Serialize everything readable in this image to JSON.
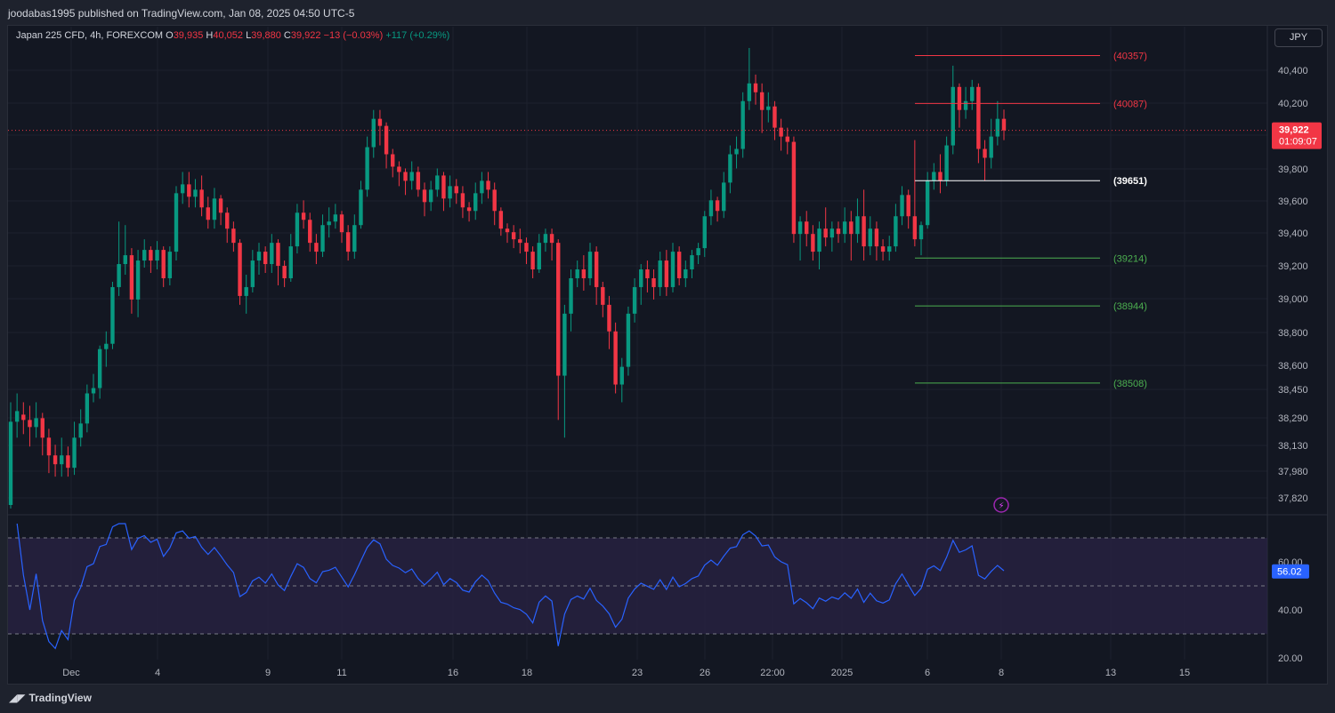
{
  "header": {
    "published_text": "joodabas1995 published on TradingView.com, Jan 08, 2025 04:50 UTC-5"
  },
  "legend": {
    "symbol": "Japan 225 CFD, 4h, FOREXCOM",
    "o_label": "O",
    "o_value": "39,935",
    "h_label": "H",
    "h_value": "40,052",
    "l_label": "L",
    "l_value": "39,880",
    "c_label": "C",
    "c_value": "39,922",
    "change": "−13 (−0.03%)",
    "change2": "+117 (+0.29%)"
  },
  "currency_button": "JPY",
  "price_axis": [
    "40,400",
    "40,200",
    "40,000",
    "39,800",
    "39,600",
    "39,400",
    "39,200",
    "39,000",
    "38,800",
    "38,600",
    "38,450",
    "38,290",
    "38,130",
    "37,980",
    "37,820"
  ],
  "current_price": {
    "value": "39,922",
    "countdown": "01:09:07"
  },
  "rsi_axis": [
    "60.00",
    "40.00",
    "20.00"
  ],
  "rsi_value": "56.02",
  "time_axis": [
    "Dec",
    "4",
    "9",
    "11",
    "16",
    "18",
    "23",
    "26",
    "22:00",
    "2025",
    "6",
    "8",
    "13",
    "15"
  ],
  "levels": [
    {
      "label": "(40357)",
      "value": 40357,
      "color": "#f23645"
    },
    {
      "label": "(40087)",
      "value": 40087,
      "color": "#f23645"
    },
    {
      "label": "(39651)",
      "value": 39651,
      "color": "#ffffff"
    },
    {
      "label": "(39214)",
      "value": 39214,
      "color": "#4caf50"
    },
    {
      "label": "(38944)",
      "value": 38944,
      "color": "#4caf50"
    },
    {
      "label": "(38508)",
      "value": 38508,
      "color": "#4caf50"
    }
  ],
  "colors": {
    "up": "#089981",
    "down": "#f23645",
    "rsi": "#2962ff",
    "background": "#131722"
  },
  "footer": {
    "brand": "TradingView"
  },
  "chart_data": {
    "type": "candlestick",
    "symbol": "Japan 225 CFD",
    "interval": "4h",
    "ylim": [
      37800,
      40450
    ],
    "candles": [
      [
        37820,
        38290,
        38400,
        37800
      ],
      [
        38290,
        38350,
        38450,
        38200
      ],
      [
        38330,
        38300,
        38400,
        38220
      ],
      [
        38300,
        38260,
        38380,
        38150
      ],
      [
        38260,
        38310,
        38400,
        38200
      ],
      [
        38310,
        38200,
        38340,
        38100
      ],
      [
        38200,
        38100,
        38250,
        38000
      ],
      [
        38100,
        38050,
        38160,
        37980
      ],
      [
        38050,
        38100,
        38200,
        37980
      ],
      [
        38100,
        38030,
        38150,
        37980
      ],
      [
        38030,
        38200,
        38290,
        37990
      ],
      [
        38200,
        38280,
        38360,
        38150
      ],
      [
        38280,
        38450,
        38500,
        38230
      ],
      [
        38450,
        38480,
        38560,
        38400
      ],
      [
        38480,
        38700,
        38720,
        38420
      ],
      [
        38700,
        38730,
        38800,
        38600
      ],
      [
        38730,
        39050,
        39080,
        38700
      ],
      [
        39050,
        39180,
        39420,
        39000
      ],
      [
        39180,
        39230,
        39400,
        39120
      ],
      [
        39230,
        38980,
        39270,
        38900
      ],
      [
        38980,
        39200,
        39260,
        38880
      ],
      [
        39200,
        39260,
        39320,
        39160
      ],
      [
        39260,
        39200,
        39280,
        39130
      ],
      [
        39200,
        39260,
        39310,
        39150
      ],
      [
        39260,
        39100,
        39280,
        39050
      ],
      [
        39100,
        39250,
        39280,
        39060
      ],
      [
        39250,
        39580,
        39620,
        39200
      ],
      [
        39580,
        39630,
        39700,
        39520
      ],
      [
        39630,
        39560,
        39700,
        39500
      ],
      [
        39560,
        39600,
        39660,
        39500
      ],
      [
        39600,
        39500,
        39680,
        39450
      ],
      [
        39500,
        39430,
        39560,
        39380
      ],
      [
        39430,
        39550,
        39610,
        39380
      ],
      [
        39550,
        39470,
        39570,
        39400
      ],
      [
        39470,
        39380,
        39500,
        39300
      ],
      [
        39380,
        39300,
        39420,
        39250
      ],
      [
        39300,
        39000,
        39320,
        38950
      ],
      [
        39000,
        39050,
        39120,
        38900
      ],
      [
        39050,
        39200,
        39260,
        39020
      ],
      [
        39200,
        39250,
        39300,
        39120
      ],
      [
        39250,
        39180,
        39280,
        39130
      ],
      [
        39180,
        39300,
        39350,
        39130
      ],
      [
        39300,
        39170,
        39320,
        39060
      ],
      [
        39170,
        39100,
        39200,
        39050
      ],
      [
        39100,
        39280,
        39350,
        39080
      ],
      [
        39280,
        39470,
        39520,
        39240
      ],
      [
        39470,
        39430,
        39540,
        39380
      ],
      [
        39430,
        39300,
        39470,
        39250
      ],
      [
        39300,
        39250,
        39350,
        39180
      ],
      [
        39250,
        39400,
        39460,
        39220
      ],
      [
        39400,
        39420,
        39500,
        39330
      ],
      [
        39420,
        39460,
        39520,
        39380
      ],
      [
        39460,
        39360,
        39480,
        39300
      ],
      [
        39360,
        39250,
        39400,
        39200
      ],
      [
        39250,
        39400,
        39460,
        39210
      ],
      [
        39400,
        39600,
        39650,
        39380
      ],
      [
        39600,
        39840,
        39900,
        39560
      ],
      [
        39840,
        40000,
        40050,
        39780
      ],
      [
        40000,
        39960,
        40050,
        39850
      ],
      [
        39960,
        39800,
        39980,
        39720
      ],
      [
        39800,
        39730,
        39830,
        39670
      ],
      [
        39730,
        39700,
        39760,
        39620
      ],
      [
        39700,
        39650,
        39720,
        39570
      ],
      [
        39650,
        39700,
        39760,
        39600
      ],
      [
        39700,
        39600,
        39730,
        39560
      ],
      [
        39600,
        39530,
        39640,
        39450
      ],
      [
        39530,
        39600,
        39650,
        39480
      ],
      [
        39600,
        39680,
        39720,
        39560
      ],
      [
        39680,
        39550,
        39700,
        39480
      ],
      [
        39550,
        39620,
        39680,
        39500
      ],
      [
        39620,
        39580,
        39660,
        39520
      ],
      [
        39580,
        39500,
        39620,
        39440
      ],
      [
        39500,
        39480,
        39530,
        39420
      ],
      [
        39480,
        39580,
        39640,
        39430
      ],
      [
        39580,
        39650,
        39700,
        39520
      ],
      [
        39650,
        39600,
        39700,
        39550
      ],
      [
        39600,
        39480,
        39640,
        39400
      ],
      [
        39480,
        39380,
        39500,
        39340
      ],
      [
        39380,
        39360,
        39410,
        39300
      ],
      [
        39360,
        39320,
        39400,
        39270
      ],
      [
        39320,
        39300,
        39380,
        39240
      ],
      [
        39300,
        39250,
        39330,
        39180
      ],
      [
        39250,
        39150,
        39280,
        39100
      ],
      [
        39150,
        39300,
        39350,
        39130
      ],
      [
        39300,
        39350,
        39380,
        39250
      ],
      [
        39350,
        39300,
        39380,
        39200
      ],
      [
        39300,
        38550,
        39320,
        38300
      ],
      [
        38550,
        38900,
        38950,
        38200
      ],
      [
        38900,
        39100,
        39150,
        38800
      ],
      [
        39100,
        39150,
        39200,
        39050
      ],
      [
        39150,
        39100,
        39230,
        39030
      ],
      [
        39100,
        39250,
        39300,
        39060
      ],
      [
        39250,
        39050,
        39280,
        38950
      ],
      [
        39050,
        38950,
        39080,
        38880
      ],
      [
        38950,
        38800,
        39000,
        38700
      ],
      [
        38800,
        38500,
        38850,
        38450
      ],
      [
        38500,
        38600,
        38650,
        38400
      ],
      [
        38600,
        38900,
        38940,
        38550
      ],
      [
        38900,
        39050,
        39100,
        38850
      ],
      [
        39050,
        39150,
        39180,
        38950
      ],
      [
        39150,
        39100,
        39200,
        39020
      ],
      [
        39100,
        39050,
        39150,
        38980
      ],
      [
        39050,
        39200,
        39250,
        39000
      ],
      [
        39200,
        39050,
        39260,
        39000
      ],
      [
        39050,
        39250,
        39300,
        39020
      ],
      [
        39250,
        39100,
        39280,
        39060
      ],
      [
        39100,
        39150,
        39200,
        39050
      ],
      [
        39150,
        39230,
        39260,
        39100
      ],
      [
        39230,
        39270,
        39300,
        39180
      ],
      [
        39270,
        39450,
        39480,
        39220
      ],
      [
        39450,
        39540,
        39600,
        39400
      ],
      [
        39540,
        39480,
        39560,
        39420
      ],
      [
        39480,
        39640,
        39700,
        39440
      ],
      [
        39640,
        39800,
        39850,
        39580
      ],
      [
        39800,
        39830,
        39900,
        39720
      ],
      [
        39830,
        40100,
        40150,
        39780
      ],
      [
        40100,
        40200,
        40400,
        40050
      ],
      [
        40200,
        40150,
        40250,
        40080
      ],
      [
        40150,
        40050,
        40200,
        39920
      ],
      [
        40050,
        40070,
        40150,
        39980
      ],
      [
        40070,
        39950,
        40100,
        39880
      ],
      [
        39950,
        39900,
        40000,
        39820
      ],
      [
        39900,
        39870,
        39950,
        39800
      ],
      [
        39870,
        39350,
        39900,
        39300
      ],
      [
        39350,
        39420,
        39450,
        39200
      ],
      [
        39420,
        39350,
        39480,
        39280
      ],
      [
        39350,
        39250,
        39400,
        39200
      ],
      [
        39250,
        39380,
        39420,
        39150
      ],
      [
        39380,
        39330,
        39500,
        39280
      ],
      [
        39330,
        39380,
        39420,
        39250
      ],
      [
        39380,
        39350,
        39420,
        39300
      ],
      [
        39350,
        39420,
        39500,
        39300
      ],
      [
        39420,
        39350,
        39480,
        39200
      ],
      [
        39350,
        39450,
        39550,
        39300
      ],
      [
        39450,
        39280,
        39600,
        39200
      ],
      [
        39280,
        39380,
        39450,
        39230
      ],
      [
        39380,
        39280,
        39420,
        39200
      ],
      [
        39280,
        39250,
        39320,
        39200
      ],
      [
        39250,
        39280,
        39340,
        39200
      ],
      [
        39280,
        39450,
        39520,
        39250
      ],
      [
        39450,
        39570,
        39620,
        39400
      ],
      [
        39570,
        39450,
        39600,
        39380
      ],
      [
        39450,
        39320,
        39880,
        39280
      ],
      [
        39320,
        39400,
        39420,
        39230
      ],
      [
        39400,
        39650,
        39700,
        39380
      ],
      [
        39650,
        39700,
        39750,
        39600
      ],
      [
        39700,
        39650,
        39800,
        39580
      ],
      [
        39650,
        39850,
        39900,
        39620
      ],
      [
        39850,
        40180,
        40300,
        39800
      ],
      [
        40180,
        40050,
        40200,
        39950
      ],
      [
        40050,
        40100,
        40180,
        40000
      ],
      [
        40100,
        40180,
        40220,
        40050
      ],
      [
        40180,
        39830,
        40200,
        39750
      ],
      [
        39830,
        39780,
        39880,
        39650
      ],
      [
        39780,
        39900,
        40000,
        39720
      ],
      [
        39900,
        40000,
        40100,
        39850
      ],
      [
        40000,
        39935,
        40052,
        39880
      ]
    ]
  }
}
